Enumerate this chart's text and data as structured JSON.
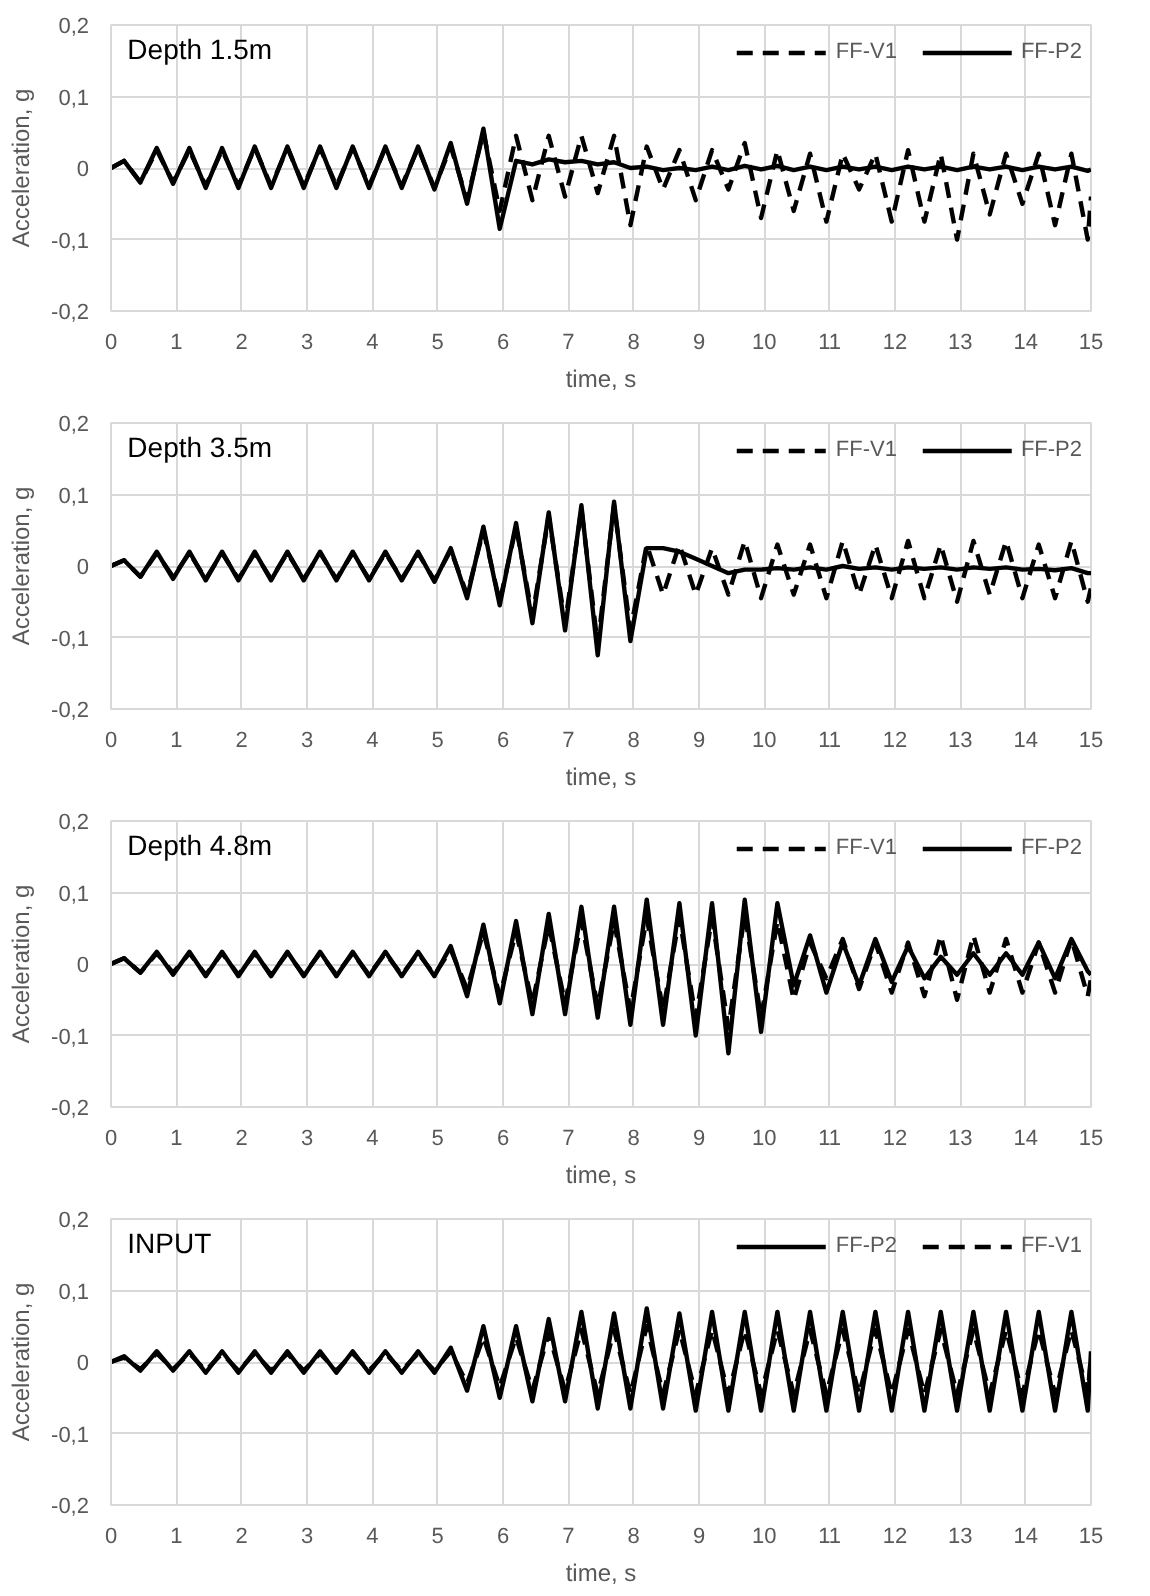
{
  "chart_data": [
    {
      "type": "line",
      "title": "Depth 1.5m",
      "xlabel": "time, s",
      "ylabel": "Acceleration, g",
      "xlim": [
        0,
        15
      ],
      "ylim": [
        -0.2,
        0.2
      ],
      "xticks": [
        0,
        1,
        2,
        3,
        4,
        5,
        6,
        7,
        8,
        9,
        10,
        11,
        12,
        13,
        14,
        15
      ],
      "yticks": [
        {
          "value": -0.2,
          "label": "-0,2"
        },
        {
          "value": -0.1,
          "label": "-0,1"
        },
        {
          "value": 0,
          "label": "0"
        },
        {
          "value": 0.1,
          "label": "0,1"
        },
        {
          "value": 0.2,
          "label": "0,2"
        }
      ],
      "grid": true,
      "legend": "top right",
      "x": [
        0,
        0.2,
        0.45,
        0.7,
        0.95,
        1.2,
        1.45,
        1.7,
        1.95,
        2.2,
        2.45,
        2.7,
        2.95,
        3.2,
        3.45,
        3.7,
        3.95,
        4.2,
        4.45,
        4.7,
        4.95,
        5.2,
        5.45,
        5.7,
        5.95,
        6.2,
        6.45,
        6.7,
        6.95,
        7.2,
        7.45,
        7.7,
        7.95,
        8.2,
        8.45,
        8.7,
        8.95,
        9.2,
        9.45,
        9.7,
        9.95,
        10.2,
        10.45,
        10.7,
        10.95,
        11.2,
        11.45,
        11.7,
        11.95,
        12.2,
        12.45,
        12.7,
        12.95,
        13.2,
        13.45,
        13.7,
        13.95,
        14.2,
        14.45,
        14.7,
        14.95,
        15
      ],
      "series": [
        {
          "name": "FF-V1",
          "color": "#000000",
          "line_style": "dashed",
          "values": [
            0,
            0.01,
            -0.02,
            0.025,
            -0.02,
            0.025,
            -0.025,
            0.025,
            -0.025,
            0.028,
            -0.025,
            0.028,
            -0.025,
            0.028,
            -0.025,
            0.028,
            -0.025,
            0.028,
            -0.025,
            0.028,
            -0.028,
            0.03,
            -0.045,
            0.05,
            -0.06,
            0.045,
            -0.045,
            0.045,
            -0.04,
            0.045,
            -0.035,
            0.045,
            -0.08,
            0.03,
            -0.03,
            0.025,
            -0.045,
            0.025,
            -0.03,
            0.035,
            -0.07,
            0.025,
            -0.06,
            0.02,
            -0.075,
            0.02,
            -0.03,
            0.02,
            -0.075,
            0.025,
            -0.075,
            0.02,
            -0.1,
            0.02,
            -0.065,
            0.02,
            -0.05,
            0.02,
            -0.08,
            0.02,
            -0.1,
            -0.04
          ]
        },
        {
          "name": "FF-P2",
          "color": "#000000",
          "line_style": "solid",
          "values": [
            0,
            0.01,
            -0.02,
            0.028,
            -0.022,
            0.028,
            -0.028,
            0.028,
            -0.028,
            0.03,
            -0.028,
            0.03,
            -0.028,
            0.03,
            -0.028,
            0.03,
            -0.028,
            0.03,
            -0.028,
            0.03,
            -0.03,
            0.035,
            -0.05,
            0.055,
            -0.085,
            0.01,
            0.005,
            0.012,
            0.008,
            0.01,
            0.005,
            0.008,
            0.0,
            0.002,
            -0.003,
            0.0,
            -0.003,
            0.002,
            -0.003,
            0.003,
            -0.002,
            0.003,
            -0.003,
            0.002,
            -0.003,
            0.002,
            -0.002,
            0.002,
            -0.003,
            0.002,
            -0.002,
            0.002,
            -0.003,
            0.002,
            -0.002,
            0.002,
            -0.003,
            0.002,
            -0.002,
            0.002,
            -0.004,
            -0.002
          ]
        }
      ]
    },
    {
      "type": "line",
      "title": "Depth 3.5m",
      "xlabel": "time, s",
      "ylabel": "Acceleration, g",
      "xlim": [
        0,
        15
      ],
      "ylim": [
        -0.2,
        0.2
      ],
      "xticks": [
        0,
        1,
        2,
        3,
        4,
        5,
        6,
        7,
        8,
        9,
        10,
        11,
        12,
        13,
        14,
        15
      ],
      "yticks": [
        {
          "value": -0.2,
          "label": "-0,2"
        },
        {
          "value": -0.1,
          "label": "-0,1"
        },
        {
          "value": 0,
          "label": "0"
        },
        {
          "value": 0.1,
          "label": "0,1"
        },
        {
          "value": 0.2,
          "label": "0,2"
        }
      ],
      "grid": true,
      "legend": "top right",
      "x": [
        0,
        0.2,
        0.45,
        0.7,
        0.95,
        1.2,
        1.45,
        1.7,
        1.95,
        2.2,
        2.45,
        2.7,
        2.95,
        3.2,
        3.45,
        3.7,
        3.95,
        4.2,
        4.45,
        4.7,
        4.95,
        5.2,
        5.45,
        5.7,
        5.95,
        6.2,
        6.45,
        6.7,
        6.95,
        7.2,
        7.45,
        7.7,
        7.95,
        8.2,
        8.45,
        8.7,
        8.95,
        9.2,
        9.45,
        9.7,
        9.95,
        10.2,
        10.45,
        10.7,
        10.95,
        11.2,
        11.45,
        11.7,
        11.95,
        12.2,
        12.45,
        12.7,
        12.95,
        13.2,
        13.45,
        13.7,
        13.95,
        14.2,
        14.45,
        14.7,
        14.95,
        15
      ],
      "series": [
        {
          "name": "FF-V1",
          "color": "#000000",
          "line_style": "dashed",
          "values": [
            0,
            0.008,
            -0.015,
            0.018,
            -0.015,
            0.018,
            -0.018,
            0.018,
            -0.018,
            0.018,
            -0.018,
            0.018,
            -0.018,
            0.018,
            -0.018,
            0.018,
            -0.018,
            0.018,
            -0.018,
            0.018,
            -0.02,
            0.022,
            -0.04,
            0.05,
            -0.05,
            0.055,
            -0.07,
            0.07,
            -0.08,
            0.08,
            -0.11,
            0.085,
            -0.09,
            0.03,
            -0.04,
            0.03,
            -0.04,
            0.025,
            -0.04,
            0.035,
            -0.045,
            0.03,
            -0.04,
            0.03,
            -0.045,
            0.035,
            -0.04,
            0.03,
            -0.045,
            0.035,
            -0.045,
            0.03,
            -0.05,
            0.035,
            -0.04,
            0.035,
            -0.045,
            0.03,
            -0.045,
            0.035,
            -0.05,
            -0.03
          ]
        },
        {
          "name": "FF-P2",
          "color": "#000000",
          "line_style": "solid",
          "values": [
            0,
            0.008,
            -0.015,
            0.02,
            -0.018,
            0.02,
            -0.02,
            0.02,
            -0.02,
            0.02,
            -0.02,
            0.02,
            -0.02,
            0.02,
            -0.02,
            0.02,
            -0.02,
            0.02,
            -0.02,
            0.02,
            -0.022,
            0.025,
            -0.045,
            0.055,
            -0.055,
            0.06,
            -0.08,
            0.075,
            -0.09,
            0.085,
            -0.125,
            0.09,
            -0.105,
            0.025,
            0.025,
            0.02,
            0.01,
            0.0,
            -0.01,
            -0.005,
            -0.005,
            -0.003,
            -0.005,
            -0.002,
            -0.005,
            0.0,
            -0.004,
            -0.002,
            -0.005,
            -0.002,
            -0.004,
            -0.002,
            -0.005,
            -0.002,
            -0.004,
            -0.002,
            -0.005,
            -0.004,
            -0.006,
            -0.003,
            -0.01,
            -0.01
          ]
        }
      ]
    },
    {
      "type": "line",
      "title": "Depth 4.8m",
      "xlabel": "time, s",
      "ylabel": "Acceleration, g",
      "xlim": [
        0,
        15
      ],
      "ylim": [
        -0.2,
        0.2
      ],
      "xticks": [
        0,
        1,
        2,
        3,
        4,
        5,
        6,
        7,
        8,
        9,
        10,
        11,
        12,
        13,
        14,
        15
      ],
      "yticks": [
        {
          "value": -0.2,
          "label": "-0,2"
        },
        {
          "value": -0.1,
          "label": "-0,1"
        },
        {
          "value": 0,
          "label": "0"
        },
        {
          "value": 0.1,
          "label": "0,1"
        },
        {
          "value": 0.2,
          "label": "0,2"
        }
      ],
      "grid": true,
      "legend": "top right",
      "x": [
        0,
        0.2,
        0.45,
        0.7,
        0.95,
        1.2,
        1.45,
        1.7,
        1.95,
        2.2,
        2.45,
        2.7,
        2.95,
        3.2,
        3.45,
        3.7,
        3.95,
        4.2,
        4.45,
        4.7,
        4.95,
        5.2,
        5.45,
        5.7,
        5.95,
        6.2,
        6.45,
        6.7,
        6.95,
        7.2,
        7.45,
        7.7,
        7.95,
        8.2,
        8.45,
        8.7,
        8.95,
        9.2,
        9.45,
        9.7,
        9.95,
        10.2,
        10.45,
        10.7,
        10.95,
        11.2,
        11.45,
        11.7,
        11.95,
        12.2,
        12.45,
        12.7,
        12.95,
        13.2,
        13.45,
        13.7,
        13.95,
        14.2,
        14.45,
        14.7,
        14.95,
        15
      ],
      "series": [
        {
          "name": "FF-V1",
          "color": "#000000",
          "line_style": "dashed",
          "values": [
            0,
            0.008,
            -0.012,
            0.015,
            -0.012,
            0.015,
            -0.015,
            0.015,
            -0.015,
            0.015,
            -0.015,
            0.015,
            -0.015,
            0.015,
            -0.015,
            0.015,
            -0.015,
            0.015,
            -0.015,
            0.015,
            -0.015,
            0.02,
            -0.035,
            0.045,
            -0.045,
            0.045,
            -0.055,
            0.055,
            -0.055,
            0.06,
            -0.06,
            0.06,
            -0.065,
            0.065,
            -0.065,
            0.065,
            -0.075,
            0.065,
            -0.09,
            0.07,
            -0.075,
            0.06,
            -0.05,
            0.03,
            -0.02,
            0.035,
            -0.035,
            0.03,
            -0.04,
            0.03,
            -0.045,
            0.04,
            -0.05,
            0.04,
            -0.04,
            0.035,
            -0.04,
            0.03,
            -0.04,
            0.035,
            -0.045,
            -0.02
          ]
        },
        {
          "name": "FF-P2",
          "color": "#000000",
          "line_style": "solid",
          "values": [
            0,
            0.008,
            -0.012,
            0.017,
            -0.015,
            0.017,
            -0.017,
            0.017,
            -0.017,
            0.017,
            -0.017,
            0.017,
            -0.017,
            0.017,
            -0.017,
            0.017,
            -0.017,
            0.017,
            -0.017,
            0.017,
            -0.017,
            0.025,
            -0.045,
            0.055,
            -0.055,
            0.06,
            -0.07,
            0.07,
            -0.07,
            0.08,
            -0.075,
            0.08,
            -0.085,
            0.09,
            -0.085,
            0.085,
            -0.1,
            0.085,
            -0.125,
            0.09,
            -0.095,
            0.085,
            -0.03,
            0.04,
            -0.04,
            0.03,
            -0.03,
            0.035,
            -0.025,
            0.025,
            -0.02,
            0.01,
            -0.015,
            0.015,
            -0.015,
            0.015,
            -0.015,
            0.03,
            -0.02,
            0.035,
            -0.01,
            -0.015
          ]
        }
      ]
    },
    {
      "type": "line",
      "title": "INPUT",
      "xlabel": "time, s",
      "ylabel": "Acceleration, g",
      "xlim": [
        0,
        15
      ],
      "ylim": [
        -0.2,
        0.2
      ],
      "xticks": [
        0,
        1,
        2,
        3,
        4,
        5,
        6,
        7,
        8,
        9,
        10,
        11,
        12,
        13,
        14,
        15
      ],
      "yticks": [
        {
          "value": -0.2,
          "label": "-0,2"
        },
        {
          "value": -0.1,
          "label": "-0,1"
        },
        {
          "value": 0,
          "label": "0"
        },
        {
          "value": 0.1,
          "label": "0,1"
        },
        {
          "value": 0.2,
          "label": "0,2"
        }
      ],
      "grid": true,
      "legend": "top right",
      "x": [
        0,
        0.2,
        0.45,
        0.7,
        0.95,
        1.2,
        1.45,
        1.7,
        1.95,
        2.2,
        2.45,
        2.7,
        2.95,
        3.2,
        3.45,
        3.7,
        3.95,
        4.2,
        4.45,
        4.7,
        4.95,
        5.2,
        5.45,
        5.7,
        5.95,
        6.2,
        6.45,
        6.7,
        6.95,
        7.2,
        7.45,
        7.7,
        7.95,
        8.2,
        8.45,
        8.7,
        8.95,
        9.2,
        9.45,
        9.7,
        9.95,
        10.2,
        10.45,
        10.7,
        10.95,
        11.2,
        11.45,
        11.7,
        11.95,
        12.2,
        12.45,
        12.7,
        12.95,
        13.2,
        13.45,
        13.7,
        13.95,
        14.2,
        14.45,
        14.7,
        14.95,
        15
      ],
      "series": [
        {
          "name": "FF-P2",
          "color": "#000000",
          "line_style": "solid",
          "values": [
            0,
            0.008,
            -0.012,
            0.015,
            -0.012,
            0.015,
            -0.015,
            0.015,
            -0.015,
            0.015,
            -0.015,
            0.015,
            -0.015,
            0.015,
            -0.015,
            0.015,
            -0.015,
            0.015,
            -0.015,
            0.015,
            -0.015,
            0.02,
            -0.04,
            0.05,
            -0.05,
            0.05,
            -0.055,
            0.06,
            -0.055,
            0.07,
            -0.065,
            0.068,
            -0.065,
            0.075,
            -0.065,
            0.068,
            -0.068,
            0.07,
            -0.068,
            0.07,
            -0.068,
            0.07,
            -0.068,
            0.07,
            -0.068,
            0.07,
            -0.068,
            0.07,
            -0.068,
            0.07,
            -0.068,
            0.07,
            -0.068,
            0.07,
            -0.068,
            0.07,
            -0.068,
            0.07,
            -0.068,
            0.07,
            -0.068,
            0.015
          ]
        },
        {
          "name": "FF-V1",
          "color": "#000000",
          "line_style": "dashed",
          "values": [
            0,
            0.006,
            -0.01,
            0.012,
            -0.01,
            0.012,
            -0.012,
            0.012,
            -0.012,
            0.012,
            -0.012,
            0.012,
            -0.012,
            0.012,
            -0.012,
            0.012,
            -0.012,
            0.012,
            -0.012,
            0.012,
            -0.012,
            0.015,
            -0.03,
            0.035,
            -0.035,
            0.035,
            -0.04,
            0.04,
            -0.04,
            0.045,
            -0.045,
            0.045,
            -0.045,
            0.05,
            -0.045,
            0.045,
            -0.045,
            0.045,
            -0.045,
            0.045,
            -0.045,
            0.045,
            -0.045,
            0.045,
            -0.045,
            0.045,
            -0.045,
            0.045,
            -0.045,
            0.045,
            -0.045,
            0.045,
            -0.045,
            0.045,
            -0.045,
            0.045,
            -0.045,
            0.045,
            -0.045,
            0.045,
            -0.045,
            0.01
          ]
        }
      ]
    }
  ]
}
